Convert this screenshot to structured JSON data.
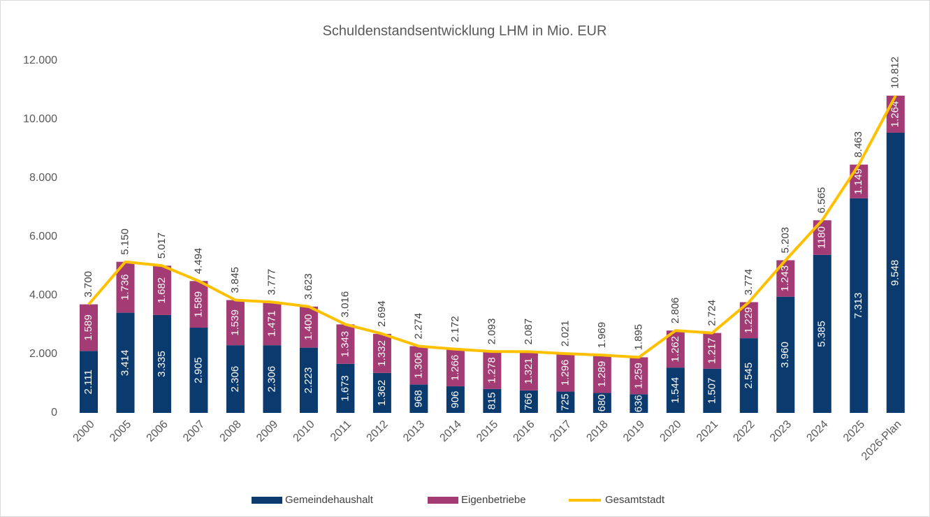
{
  "chart_data": {
    "type": "bar",
    "stacked": true,
    "title": "Schuldenstandsentwicklung LHM in Mio. EUR",
    "categories": [
      "2000",
      "2005",
      "2006",
      "2007",
      "2008",
      "2009",
      "2010",
      "2011",
      "2012",
      "2013",
      "2014",
      "2015",
      "2016",
      "2017",
      "2018",
      "2019",
      "2020",
      "2021",
      "2022",
      "2023",
      "2024",
      "2025",
      "2026-Plan"
    ],
    "series": [
      {
        "name": "Gemeindehaushalt",
        "type": "bar",
        "color": "#0b3a6f",
        "values": [
          2111,
          3414,
          3335,
          2905,
          2306,
          2306,
          2223,
          1673,
          1362,
          968,
          906,
          815,
          766,
          725,
          680,
          636,
          1544,
          1507,
          2545,
          3960,
          5385,
          7313,
          9548
        ],
        "value_labels": [
          "2.111",
          "3.414",
          "3.335",
          "2.905",
          "2.306",
          "2.306",
          "2.223",
          "1.673",
          "1.362",
          "968",
          "906",
          "815",
          "766",
          "725",
          "680",
          "636",
          "1.544",
          "1.507",
          "2.545",
          "3.960",
          "5.385",
          "7.313",
          "9.548"
        ]
      },
      {
        "name": "Eigenbetriebe",
        "type": "bar",
        "color": "#a33b74",
        "values": [
          1589,
          1736,
          1682,
          1589,
          1539,
          1471,
          1400,
          1343,
          1332,
          1306,
          1266,
          1278,
          1321,
          1296,
          1289,
          1259,
          1262,
          1217,
          1229,
          1243,
          1180,
          1149,
          1264
        ],
        "value_labels": [
          "1.589",
          "1.736",
          "1.682",
          "1.589",
          "1.539",
          "1.471",
          "1.400",
          "1.343",
          "1.332",
          "1.306",
          "1.266",
          "1.278",
          "1.321",
          "1.296",
          "1.289",
          "1.259",
          "1.262",
          "1.217",
          "1.229",
          "1.243",
          "1180",
          "1.149",
          "1.264"
        ]
      },
      {
        "name": "Gesamtstadt",
        "type": "line",
        "color": "#ffc000",
        "values": [
          3700,
          5150,
          5017,
          4494,
          3845,
          3777,
          3623,
          3016,
          2694,
          2274,
          2172,
          2093,
          2087,
          2021,
          1969,
          1895,
          2806,
          2724,
          3774,
          5203,
          6565,
          8463,
          10812
        ],
        "value_labels": [
          "3.700",
          "5.150",
          "5.017",
          "4.494",
          "3.845",
          "3.777",
          "3.623",
          "3.016",
          "2.694",
          "2.274",
          "2.172",
          "2.093",
          "2.087",
          "2.021",
          "1.969",
          "1.895",
          "2.806",
          "2.724",
          "3.774",
          "5.203",
          "6.565",
          "8.463",
          "10.812"
        ]
      }
    ],
    "ylim": [
      0,
      12000
    ],
    "yticks": [
      0,
      {
        "value": 2000,
        "label": "2.000"
      },
      {
        "value": 4000,
        "label": "4.000"
      },
      {
        "value": 6000,
        "label": "6.000"
      },
      {
        "value": 8000,
        "label": "8.000"
      },
      {
        "value": 10000,
        "label": "10.000"
      },
      {
        "value": 12000,
        "label": "12.000"
      }
    ],
    "grid": false,
    "legend": "bottom"
  }
}
